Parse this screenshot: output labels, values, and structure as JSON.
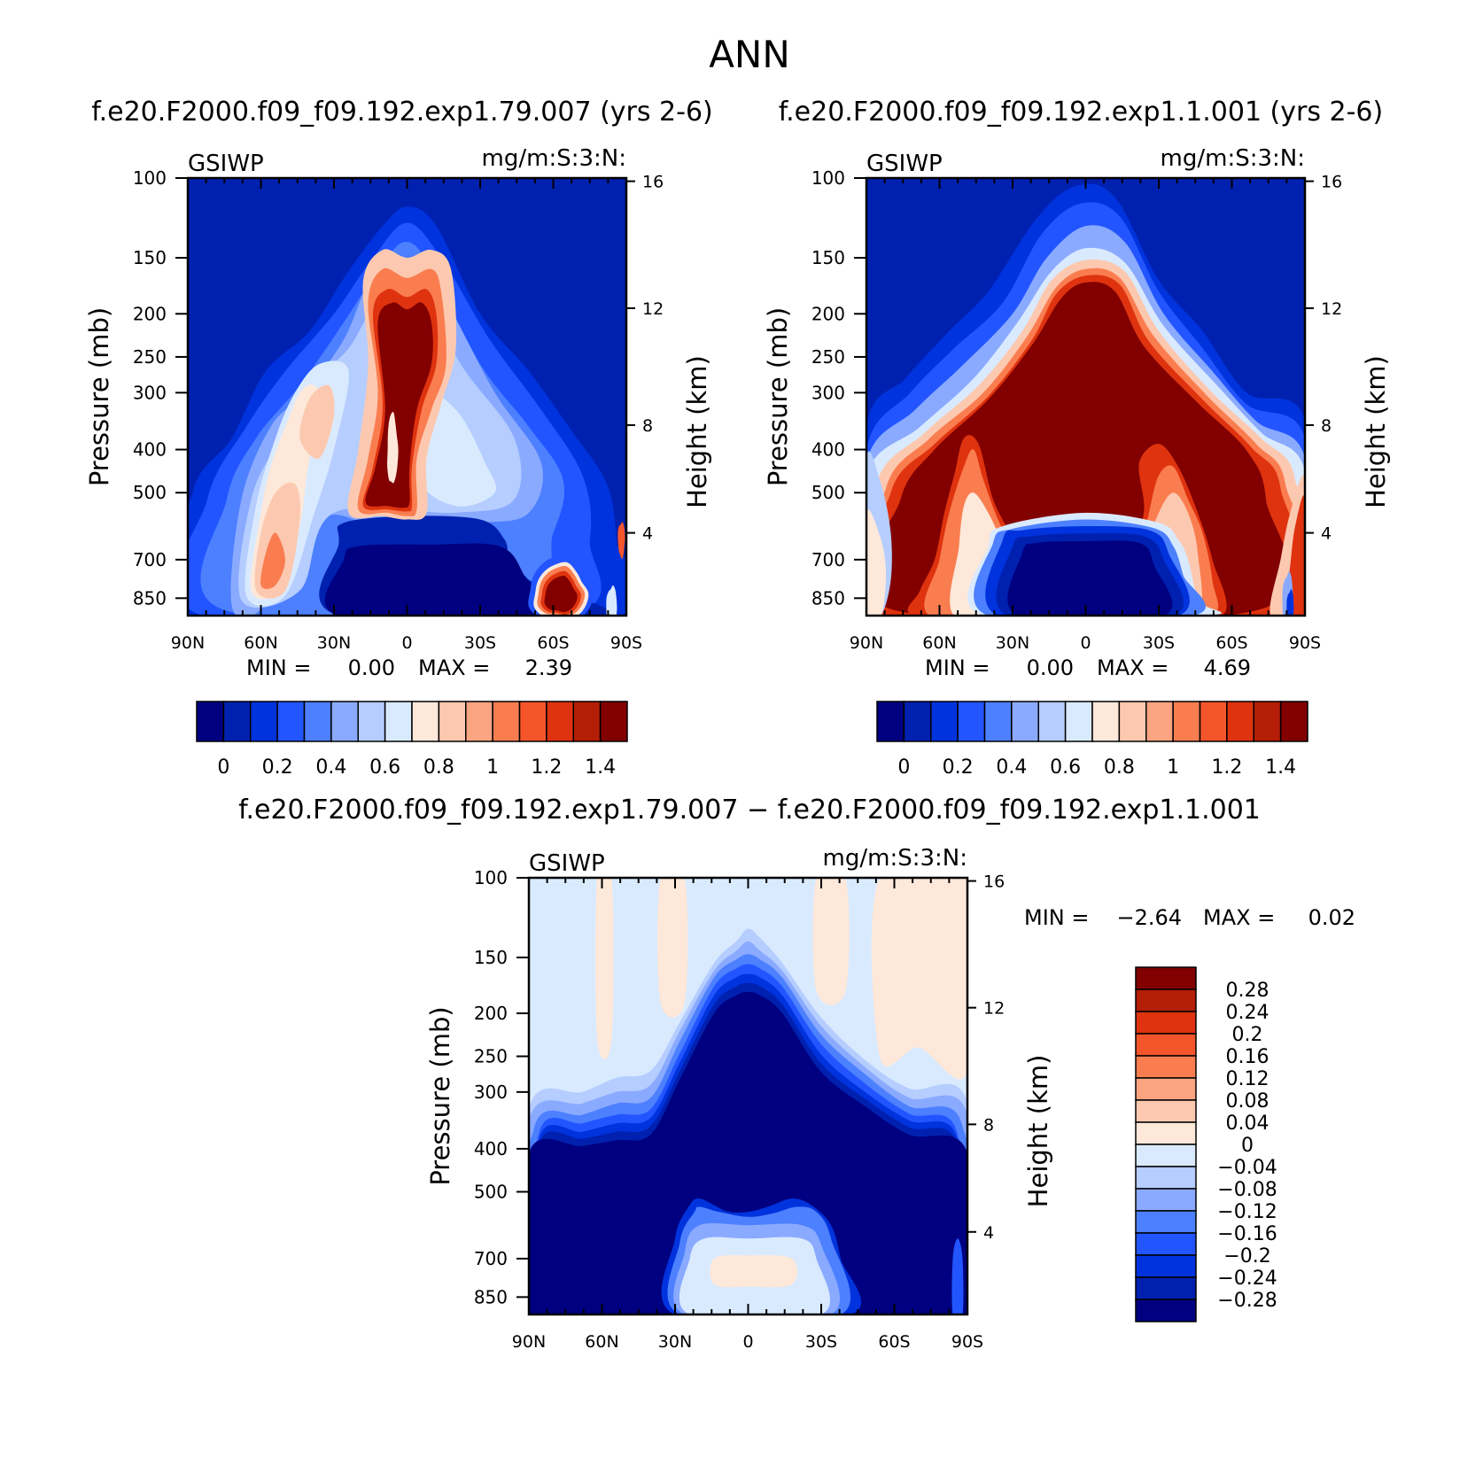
{
  "page_title": "ANN",
  "colors": {
    "levels": [
      "#000080",
      "#0021b0",
      "#0033dd",
      "#2255ff",
      "#4d80ff",
      "#8aaaff",
      "#b5cdff",
      "#d9eaff",
      "#fde8da",
      "#fcc9b0",
      "#fba481",
      "#fa7d50",
      "#f5552a",
      "#df330f",
      "#b41e06",
      "#820000"
    ],
    "frame": "#000000"
  },
  "chart_data": [
    {
      "type": "contour",
      "title": "f.e20.F2000.f09_f09.192.exp1.79.007 (yrs 2-6)",
      "variable": "GSIWP",
      "units": "mg/m:S:3:N:",
      "ylabel": "Pressure (mb)",
      "y2label": "Height (km)",
      "x_ticks": [
        "90N",
        "60N",
        "30N",
        "0",
        "30S",
        "60S",
        "90S"
      ],
      "y_ticks": [
        "100",
        "150",
        "200",
        "250",
        "300",
        "400",
        "500",
        "700",
        "850"
      ],
      "y2_ticks": [
        "16",
        "12",
        "8",
        "4"
      ],
      "ylim": [
        100,
        930
      ],
      "min_label": "MIN =",
      "min_value": "0.00",
      "max_label": "MAX =",
      "max_value": "2.39",
      "colorbar_labels": [
        "0",
        "0.2",
        "0.4",
        "0.6",
        "0.8",
        "1",
        "1.2",
        "1.4"
      ],
      "colorbar_levels": [
        0,
        0.1,
        0.2,
        0.3,
        0.4,
        0.5,
        0.6,
        0.7,
        0.8,
        0.9,
        1.0,
        1.1,
        1.2,
        1.3,
        1.4
      ],
      "background_level": 1
    },
    {
      "type": "contour",
      "title": "f.e20.F2000.f09_f09.192.exp1.1.001 (yrs 2-6)",
      "variable": "GSIWP",
      "units": "mg/m:S:3:N:",
      "ylabel": "Pressure (mb)",
      "y2label": "Height (km)",
      "x_ticks": [
        "90N",
        "60N",
        "30N",
        "0",
        "30S",
        "60S",
        "90S"
      ],
      "y_ticks": [
        "100",
        "150",
        "200",
        "250",
        "300",
        "400",
        "500",
        "700",
        "850"
      ],
      "y2_ticks": [
        "16",
        "12",
        "8",
        "4"
      ],
      "ylim": [
        100,
        930
      ],
      "min_label": "MIN =",
      "min_value": "0.00",
      "max_label": "MAX =",
      "max_value": "4.69",
      "colorbar_labels": [
        "0",
        "0.2",
        "0.4",
        "0.6",
        "0.8",
        "1",
        "1.2",
        "1.4"
      ],
      "colorbar_levels": [
        0,
        0.1,
        0.2,
        0.3,
        0.4,
        0.5,
        0.6,
        0.7,
        0.8,
        0.9,
        1.0,
        1.1,
        1.2,
        1.3,
        1.4
      ],
      "background_level": 1
    },
    {
      "type": "contour",
      "title": "f.e20.F2000.f09_f09.192.exp1.79.007 − f.e20.F2000.f09_f09.192.exp1.1.001",
      "variable": "GSIWP",
      "units": "mg/m:S:3:N:",
      "ylabel": "Pressure (mb)",
      "y2label": "Height (km)",
      "x_ticks": [
        "90N",
        "60N",
        "30N",
        "0",
        "30S",
        "60S",
        "90S"
      ],
      "y_ticks": [
        "100",
        "150",
        "200",
        "250",
        "300",
        "400",
        "500",
        "700",
        "850"
      ],
      "y2_ticks": [
        "16",
        "12",
        "8",
        "4"
      ],
      "ylim": [
        100,
        930
      ],
      "min_label": "MIN =",
      "min_value": "−2.64",
      "max_label": "MAX =",
      "max_value": "0.02",
      "colorbar_labels": [
        "0.28",
        "0.24",
        "0.2",
        "0.16",
        "0.12",
        "0.08",
        "0.04",
        "0",
        "−0.04",
        "−0.08",
        "−0.12",
        "−0.16",
        "−0.2",
        "−0.24",
        "−0.28"
      ],
      "colorbar_levels": [
        0.28,
        0.24,
        0.2,
        0.16,
        0.12,
        0.08,
        0.04,
        0,
        -0.04,
        -0.08,
        -0.12,
        -0.16,
        -0.2,
        -0.24,
        -0.28
      ],
      "background_level": 7
    }
  ]
}
